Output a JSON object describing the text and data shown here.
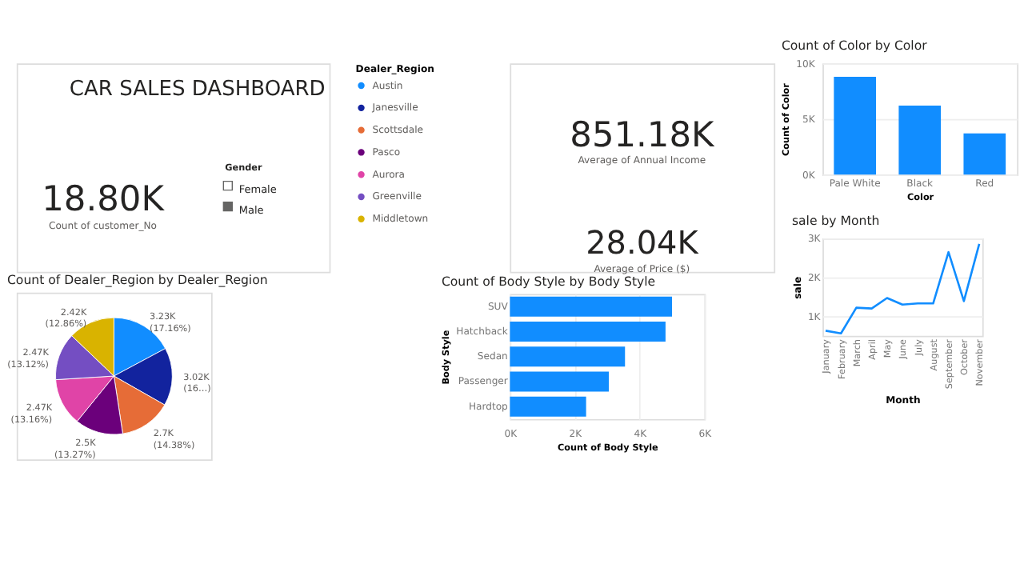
{
  "chart_data": [
    {
      "type": "other",
      "title": "CAR SALES DASHBOARD",
      "annotations": [
        "18.80K",
        "Count of customer_No",
        "Gender",
        "Female",
        "Male"
      ]
    },
    {
      "type": "other",
      "annotations": [
        "851.18K",
        "Average of Annual Income",
        "28.04K",
        "Average of Price ($)"
      ]
    },
    {
      "type": "bar",
      "title": "Count of Color by Color",
      "categories": [
        "Pale White",
        "Black",
        "Red"
      ],
      "values": [
        8800,
        6200,
        3700
      ],
      "color": "#118dff",
      "xlabel": "Color",
      "ylabel": "Count of Color",
      "ylim": [
        0,
        10000
      ],
      "yticks": [
        {
          "value": 0,
          "label": "0K"
        },
        {
          "value": 5000,
          "label": "5K"
        },
        {
          "value": 10000,
          "label": "10K"
        }
      ],
      "grid": "y"
    },
    {
      "type": "pie",
      "title": "Count of Dealer_Region by Dealer_Region",
      "categories": [
        "Austin",
        "Janesville",
        "Scottsdale",
        "Pasco",
        "Aurora",
        "Greenville",
        "Middletown"
      ],
      "values": [
        3230,
        3020,
        2700,
        2500,
        2470,
        2470,
        2420
      ],
      "colors": [
        "#118dff",
        "#12239e",
        "#e66c37",
        "#6b007b",
        "#e044a7",
        "#744ec2",
        "#d9b300"
      ],
      "value_labels": [
        "3.23K (17.16%)",
        "3.02K (16…)",
        "2.7K (14.38%)",
        "2.5K (13.27%)",
        "2.47K (13.16%)",
        "2.47K (13.12%)",
        "2.42K (12.86%)"
      ],
      "legend_title": "Dealer_Region",
      "legend": "right"
    },
    {
      "type": "bar",
      "orientation": "horizontal",
      "title": "Count of Body Style by Body Style",
      "categories": [
        "SUV",
        "Hatchback",
        "Sedan",
        "Passenger",
        "Hardtop"
      ],
      "values": [
        5000,
        4800,
        3550,
        3050,
        2350
      ],
      "color": "#118dff",
      "xlabel": "Count of Body Style",
      "ylabel": "Body Style",
      "xlim": [
        0,
        6000
      ],
      "xticks": [
        {
          "value": 0,
          "label": "0K"
        },
        {
          "value": 2000,
          "label": "2K"
        },
        {
          "value": 4000,
          "label": "4K"
        },
        {
          "value": 6000,
          "label": "6K"
        }
      ],
      "grid": "x"
    },
    {
      "type": "line",
      "title": "sale by Month",
      "categories": [
        "January",
        "February",
        "March",
        "April",
        "May",
        "June",
        "July",
        "August",
        "September",
        "October",
        "November"
      ],
      "values": [
        630,
        560,
        1220,
        1200,
        1470,
        1300,
        1330,
        1330,
        2650,
        1390,
        2860
      ],
      "color": "#118dff",
      "xlabel": "Month",
      "ylabel": "sale",
      "ylim": [
        500,
        3000
      ],
      "yticks": [
        {
          "value": 1000,
          "label": "1K"
        },
        {
          "value": 2000,
          "label": "2K"
        },
        {
          "value": 3000,
          "label": "3K"
        }
      ],
      "grid": "y",
      "marker": "none"
    }
  ]
}
